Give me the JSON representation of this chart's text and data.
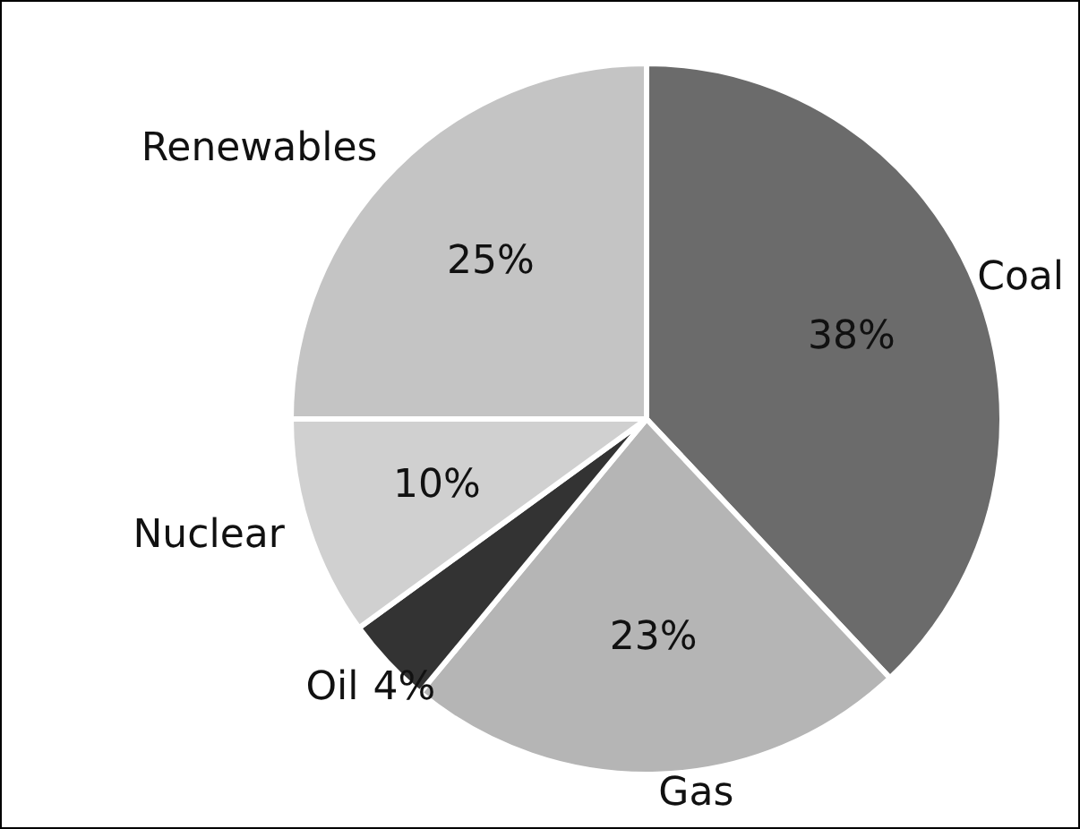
{
  "chart_data": {
    "type": "pie",
    "categories": [
      "Coal",
      "Gas",
      "Oil",
      "Nuclear",
      "Renewables"
    ],
    "values": [
      38,
      23,
      4,
      10,
      25
    ],
    "colors": [
      "#6b6b6b",
      "#b5b5b5",
      "#333333",
      "#d0d0d0",
      "#c4c4c4"
    ],
    "value_labels": [
      "38%",
      "23%",
      "4%",
      "10%",
      "25%"
    ],
    "legend": false
  }
}
